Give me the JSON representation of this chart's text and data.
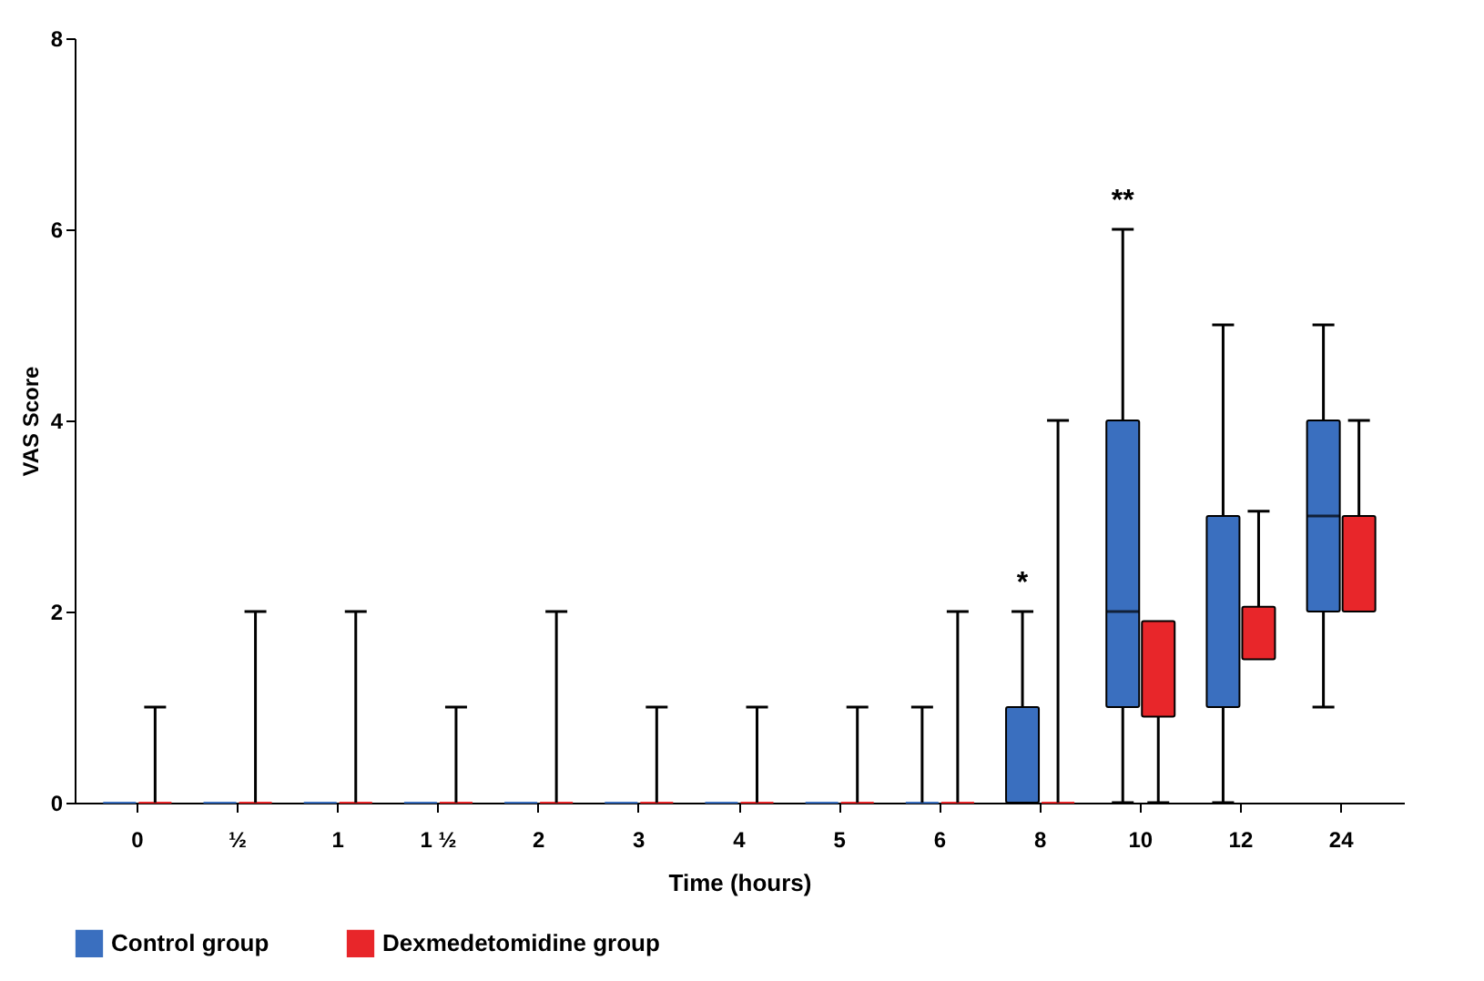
{
  "chart_data": {
    "type": "box",
    "xlabel": "Time (hours)",
    "ylabel": "VAS Score",
    "categories": [
      "0",
      "½",
      "1",
      "1 ½",
      "2",
      "3",
      "4",
      "5",
      "6",
      "8",
      "10",
      "12",
      "24"
    ],
    "series": [
      {
        "name": "Control group",
        "color": "#3a6fbf",
        "boxes": [
          {
            "low": 0,
            "q1": 0,
            "median": 0,
            "q3": 0,
            "high": 0
          },
          {
            "low": 0,
            "q1": 0,
            "median": 0,
            "q3": 0,
            "high": 0
          },
          {
            "low": 0,
            "q1": 0,
            "median": 0,
            "q3": 0,
            "high": 0
          },
          {
            "low": 0,
            "q1": 0,
            "median": 0,
            "q3": 0,
            "high": 0
          },
          {
            "low": 0,
            "q1": 0,
            "median": 0,
            "q3": 0,
            "high": 0
          },
          {
            "low": 0,
            "q1": 0,
            "median": 0,
            "q3": 0,
            "high": 0
          },
          {
            "low": 0,
            "q1": 0,
            "median": 0,
            "q3": 0,
            "high": 0
          },
          {
            "low": 0,
            "q1": 0,
            "median": 0,
            "q3": 0,
            "high": 0
          },
          {
            "low": 0,
            "q1": 0,
            "median": 0,
            "q3": 0,
            "high": 1
          },
          {
            "low": 0,
            "q1": 0,
            "median": 0,
            "q3": 1,
            "high": 2
          },
          {
            "low": 0,
            "q1": 1,
            "median": 2,
            "q3": 4,
            "high": 6
          },
          {
            "low": 0,
            "q1": 1,
            "median": 1,
            "q3": 3,
            "high": 5
          },
          {
            "low": 1,
            "q1": 2,
            "median": 3,
            "q3": 4,
            "high": 5
          }
        ]
      },
      {
        "name": "Dexmedetomidine group",
        "color": "#e8262a",
        "boxes": [
          {
            "low": 0,
            "q1": 0,
            "median": 0,
            "q3": 0,
            "high": 1
          },
          {
            "low": 0,
            "q1": 0,
            "median": 0,
            "q3": 0,
            "high": 2
          },
          {
            "low": 0,
            "q1": 0,
            "median": 0,
            "q3": 0,
            "high": 2
          },
          {
            "low": 0,
            "q1": 0,
            "median": 0,
            "q3": 0,
            "high": 1
          },
          {
            "low": 0,
            "q1": 0,
            "median": 0,
            "q3": 0,
            "high": 2
          },
          {
            "low": 0,
            "q1": 0,
            "median": 0,
            "q3": 0,
            "high": 1
          },
          {
            "low": 0,
            "q1": 0,
            "median": 0,
            "q3": 0,
            "high": 1
          },
          {
            "low": 0,
            "q1": 0,
            "median": 0,
            "q3": 0,
            "high": 1
          },
          {
            "low": 0,
            "q1": 0,
            "median": 0,
            "q3": 0,
            "high": 2
          },
          {
            "low": 0,
            "q1": 0,
            "median": 0,
            "q3": 0,
            "high": 4
          },
          {
            "low": 0,
            "q1": 0.9,
            "median": 0.9,
            "q3": 1.9,
            "high": 1.9
          },
          {
            "low": 1.5,
            "q1": 1.5,
            "median": 1.5,
            "q3": 2.05,
            "high": 3.05
          },
          {
            "low": 2,
            "q1": 2,
            "median": 2,
            "q3": 3,
            "high": 4
          }
        ]
      }
    ],
    "annotations": [
      "*",
      "**"
    ],
    "ylim": [
      0,
      8
    ],
    "yticks": [
      0,
      2,
      4,
      6,
      8
    ],
    "grid": false,
    "legend": "bottom"
  }
}
